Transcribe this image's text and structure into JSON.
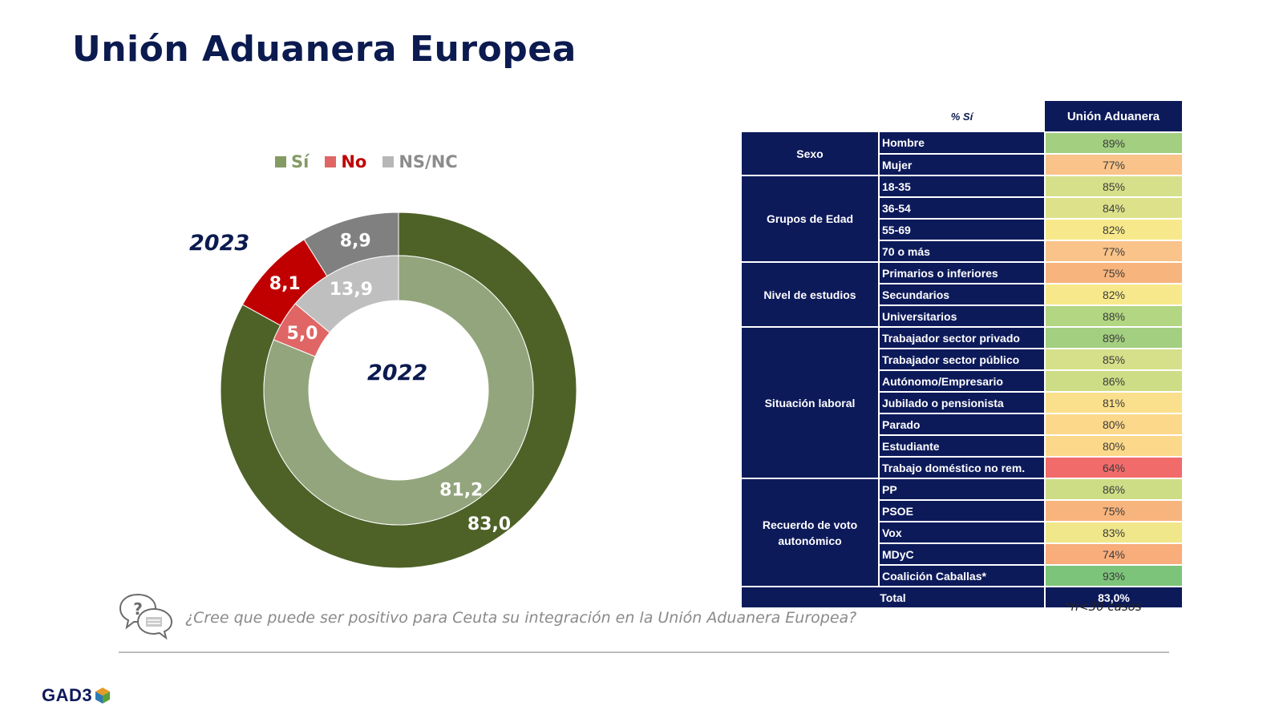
{
  "title": "Unión Aduanera Europea",
  "legend": [
    {
      "label": "Sí",
      "color": "#849a63",
      "text_color": "#849a63"
    },
    {
      "label": "No",
      "color": "#e06666",
      "text_color": "#c00000"
    },
    {
      "label": "NS/NC",
      "color": "#b7b7b7",
      "text_color": "#8c8c8c"
    }
  ],
  "chart_data": {
    "type": "donut",
    "legend_placement": "top",
    "categories": [
      "Sí",
      "No",
      "NS/NC"
    ],
    "series": [
      {
        "name": "2023",
        "ring": "outer",
        "values": [
          83.0,
          8.1,
          8.9
        ],
        "labels": [
          "83,0",
          "8,1",
          "8,9"
        ],
        "colors": [
          "#4e6228",
          "#c00000",
          "#808080"
        ]
      },
      {
        "name": "2022",
        "ring": "inner",
        "values": [
          81.2,
          5.0,
          13.9
        ],
        "labels": [
          "81,2",
          "5,0",
          "13,9"
        ],
        "colors": [
          "#93a57c",
          "#e06666",
          "#bfbfbf"
        ]
      }
    ]
  },
  "table": {
    "header_pct": "% Sí",
    "header_col": "Unión Aduanera",
    "groups": [
      {
        "name": "Sexo",
        "rows": [
          {
            "label": "Hombre",
            "value": "89%",
            "color": "#a3cf80"
          },
          {
            "label": "Mujer",
            "value": "77%",
            "color": "#f9c38a"
          }
        ]
      },
      {
        "name": "Grupos de Edad",
        "rows": [
          {
            "label": "18-35",
            "value": "85%",
            "color": "#d6e08a"
          },
          {
            "label": "36-54",
            "value": "84%",
            "color": "#dde28a"
          },
          {
            "label": "55-69",
            "value": "82%",
            "color": "#f7e98b"
          },
          {
            "label": "70 o más",
            "value": "77%",
            "color": "#f9c38a"
          }
        ]
      },
      {
        "name": "Nivel de estudios",
        "rows": [
          {
            "label": "Primarios o inferiores",
            "value": "75%",
            "color": "#f8b47d"
          },
          {
            "label": "Secundarios",
            "value": "82%",
            "color": "#f7e98b"
          },
          {
            "label": "Universitarios",
            "value": "88%",
            "color": "#b2d682"
          }
        ]
      },
      {
        "name": "Situación laboral",
        "rows": [
          {
            "label": "Trabajador sector privado",
            "value": "89%",
            "color": "#a3cf80"
          },
          {
            "label": "Trabajador sector público",
            "value": "85%",
            "color": "#d6e08a"
          },
          {
            "label": "Autónomo/Empresario",
            "value": "86%",
            "color": "#cddd86"
          },
          {
            "label": "Jubilado o pensionista",
            "value": "81%",
            "color": "#fae08c"
          },
          {
            "label": "Parado",
            "value": "80%",
            "color": "#fcd98a"
          },
          {
            "label": "Estudiante",
            "value": "80%",
            "color": "#fcd98a"
          },
          {
            "label": "Trabajo doméstico no rem.",
            "value": "64%",
            "color": "#f26b6b"
          }
        ]
      },
      {
        "name": "Recuerdo de voto autonómico",
        "rows": [
          {
            "label": "PP",
            "value": "86%",
            "color": "#cddd86"
          },
          {
            "label": "PSOE",
            "value": "75%",
            "color": "#f8b47d"
          },
          {
            "label": "Vox",
            "value": "83%",
            "color": "#f0e68a"
          },
          {
            "label": "MDyC",
            "value": "74%",
            "color": "#f8ad7b"
          },
          {
            "label": "Coalición Caballas*",
            "value": "93%",
            "color": "#7cc47a"
          }
        ]
      }
    ],
    "total_label": "Total",
    "total_value": "83,0%"
  },
  "note": "*n<30 casos",
  "question": "¿Cree que puede ser positivo para Ceuta su integración en la Unión Aduanera Europea?",
  "logo_text": "GAD3"
}
